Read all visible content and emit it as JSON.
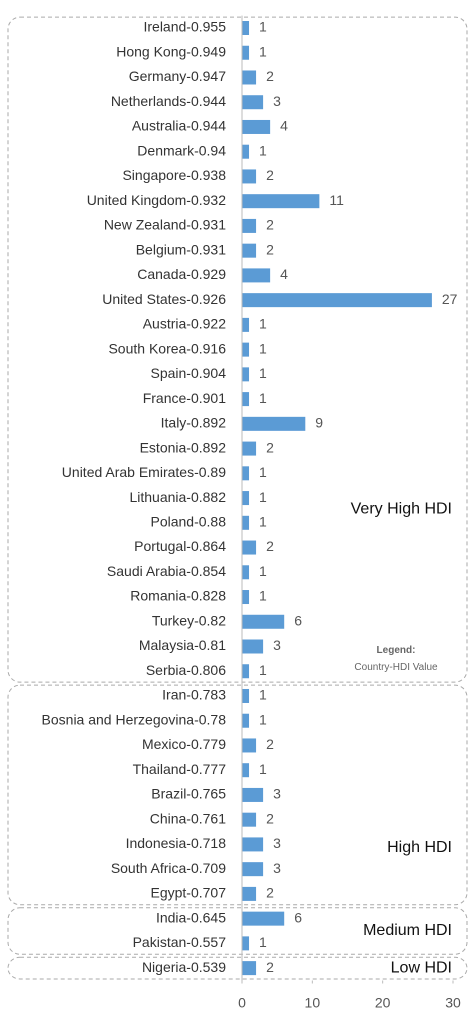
{
  "chart_data": {
    "type": "bar",
    "color": "#5b9bd5",
    "xlim": [
      0,
      30
    ],
    "xticks": [
      0,
      10,
      20,
      30
    ],
    "legend": {
      "title": "Legend:",
      "text": "Country-HDI Value"
    },
    "groups": [
      {
        "name": "Very High HDI",
        "categories": [
          "Ireland-0.955",
          "Hong Kong-0.949",
          "Germany-0.947",
          "Netherlands-0.944",
          "Australia-0.944",
          "Denmark-0.94",
          "Singapore-0.938",
          "United Kingdom-0.932",
          "New Zealand-0.931",
          "Belgium-0.931",
          "Canada-0.929",
          "United States-0.926",
          "Austria-0.922",
          "South Korea-0.916",
          "Spain-0.904",
          "France-0.901",
          "Italy-0.892",
          "Estonia-0.892",
          "United Arab Emirates-0.89",
          "Lithuania-0.882",
          "Poland-0.88",
          "Portugal-0.864",
          "Saudi Arabia-0.854",
          "Romania-0.828",
          "Turkey-0.82",
          "Malaysia-0.81",
          "Serbia-0.806"
        ],
        "values": [
          1,
          1,
          2,
          3,
          4,
          1,
          2,
          11,
          2,
          2,
          4,
          27,
          1,
          1,
          1,
          1,
          9,
          2,
          1,
          1,
          1,
          2,
          1,
          1,
          6,
          3,
          1
        ]
      },
      {
        "name": "High HDI",
        "categories": [
          "Iran-0.783",
          "Bosnia and Herzegovina-0.78",
          "Mexico-0.779",
          "Thailand-0.777",
          "Brazil-0.765",
          "China-0.761",
          "Indonesia-0.718",
          "South Africa-0.709",
          "Egypt-0.707"
        ],
        "values": [
          1,
          1,
          2,
          1,
          3,
          2,
          3,
          3,
          2
        ]
      },
      {
        "name": "Medium HDI",
        "categories": [
          "India-0.645",
          "Pakistan-0.557"
        ],
        "values": [
          6,
          1
        ]
      },
      {
        "name": "Low HDI",
        "categories": [
          "Nigeria-0.539"
        ],
        "values": [
          2
        ]
      }
    ]
  }
}
